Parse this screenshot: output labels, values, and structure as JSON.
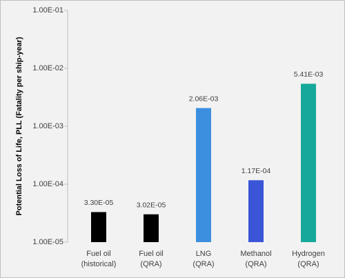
{
  "chart_data": {
    "type": "bar",
    "log_scale": true,
    "ylabel": "Potential Loss of Life, PLL (Fatality per ship-year)",
    "categories": [
      [
        "Fuel oil",
        "(historical)"
      ],
      [
        "Fuel oil",
        "(QRA)"
      ],
      [
        "LNG",
        "(QRA)"
      ],
      [
        "Methanol",
        "(QRA)"
      ],
      [
        "Hydrogen",
        "(QRA)"
      ]
    ],
    "values": [
      3.3e-05,
      3.02e-05,
      0.00206,
      0.000117,
      0.00541
    ],
    "value_labels": [
      "3.30E-05",
      "3.02E-05",
      "2.06E-03",
      "1.17E-04",
      "5.41E-03"
    ],
    "colors": [
      "#000000",
      "#000000",
      "#3c8fdf",
      "#3a55d8",
      "#16a99b"
    ],
    "ylim": [
      1e-05,
      0.1
    ],
    "yticks": [
      {
        "value": 1e-05,
        "label": "1.00E-05"
      },
      {
        "value": 0.0001,
        "label": "1.00E-04"
      },
      {
        "value": 0.001,
        "label": "1.00E-03"
      },
      {
        "value": 0.01,
        "label": "1.00E-02"
      },
      {
        "value": 0.1,
        "label": "1.00E-01"
      }
    ]
  }
}
